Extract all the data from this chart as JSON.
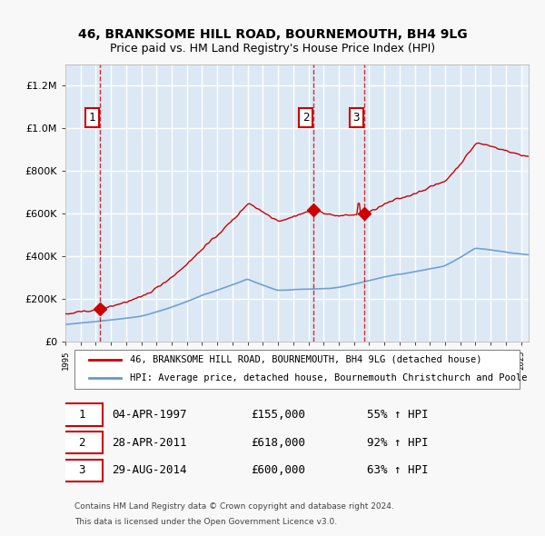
{
  "title1": "46, BRANKSOME HILL ROAD, BOURNEMOUTH, BH4 9LG",
  "title2": "Price paid vs. HM Land Registry's House Price Index (HPI)",
  "legend1": "46, BRANKSOME HILL ROAD, BOURNEMOUTH, BH4 9LG (detached house)",
  "legend2": "HPI: Average price, detached house, Bournemouth Christchurch and Poole",
  "footer1": "Contains HM Land Registry data © Crown copyright and database right 2024.",
  "footer2": "This data is licensed under the Open Government Licence v3.0.",
  "sale_markers": [
    {
      "num": 1,
      "date": "04-APR-1997",
      "price": 155000,
      "pct": "55%",
      "year": 1997.25
    },
    {
      "num": 2,
      "date": "28-APR-2011",
      "price": 618000,
      "pct": "92%",
      "year": 2011.32
    },
    {
      "num": 3,
      "date": "29-AUG-2014",
      "price": 600000,
      "pct": "63%",
      "year": 2014.66
    }
  ],
  "red_line_color": "#cc0000",
  "blue_line_color": "#6699cc",
  "bg_color": "#dce9f5",
  "plot_bg": "#dce9f5",
  "grid_color": "#ffffff",
  "dashed_line_color": "#cc0000",
  "marker_color": "#cc0000",
  "ylabel_color": "#333333",
  "xmin": 1995.0,
  "xmax": 2025.5,
  "ymin": 0,
  "ymax": 1300000
}
